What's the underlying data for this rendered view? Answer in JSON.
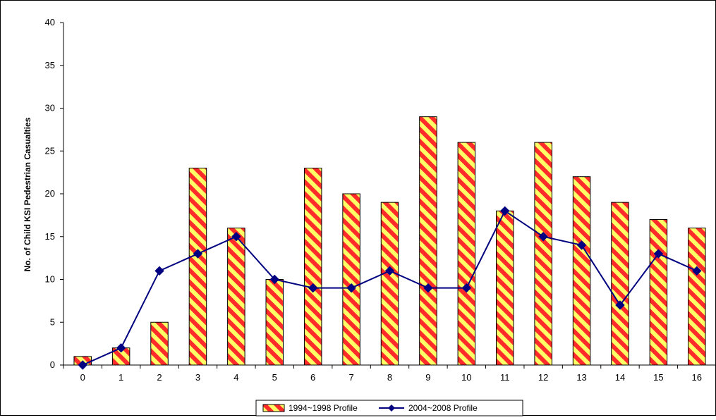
{
  "chart_data": {
    "type": "bar",
    "ylabel": "No. of Child KSI Pedestrian Casualties",
    "xlabel": "",
    "title": "",
    "ylim": [
      0,
      40
    ],
    "yticks": [
      0,
      5,
      10,
      15,
      20,
      25,
      30,
      35,
      40
    ],
    "categories": [
      "0",
      "1",
      "2",
      "3",
      "4",
      "5",
      "6",
      "7",
      "8",
      "9",
      "10",
      "11",
      "12",
      "13",
      "14",
      "15",
      "16"
    ],
    "series": [
      {
        "name": "1994~1998 Profile",
        "kind": "bar",
        "pattern": "diagonal-stripes",
        "colors": [
          "#ff2a2a",
          "#ffff66"
        ],
        "values": [
          1,
          2,
          5,
          23,
          16,
          10,
          23,
          20,
          19,
          29,
          26,
          18,
          26,
          22,
          19,
          17,
          16
        ]
      },
      {
        "name": "2004~2008 Profile",
        "kind": "line",
        "marker": "diamond",
        "color": "#000080",
        "values": [
          0,
          2,
          11,
          13,
          15,
          10,
          9,
          9,
          11,
          9,
          9,
          18,
          15,
          14,
          7,
          13,
          11
        ]
      }
    ],
    "grid": false,
    "legend": "bottom-center"
  }
}
